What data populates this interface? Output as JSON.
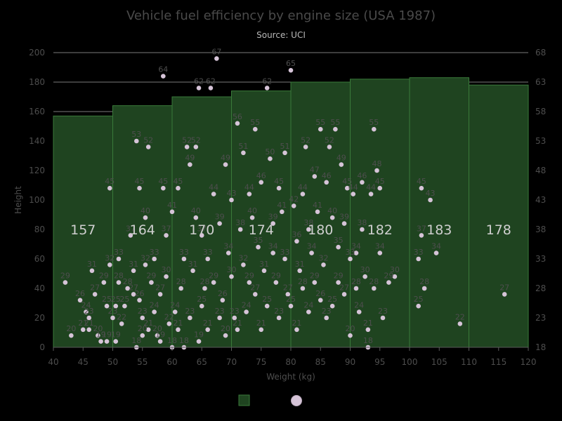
{
  "chart_data": {
    "type": "bar",
    "title": "Vehicle fuel efficiency by engine size (USA 1987)",
    "subtitle": "Source: UCI",
    "xlabel": "Weight (kg)",
    "ylabel": "Height",
    "xlim": [
      40,
      120
    ],
    "ylim": [
      0,
      200
    ],
    "y2lim": [
      18,
      68
    ],
    "x_ticks": [
      "40",
      "45",
      "50",
      "55",
      "60",
      "65",
      "70",
      "75",
      "80",
      "85",
      "90",
      "95",
      "100",
      "105",
      "110",
      "115",
      "120"
    ],
    "y_ticks": [
      "0",
      "20",
      "40",
      "60",
      "80",
      "100",
      "120",
      "140",
      "160",
      "180",
      "200"
    ],
    "y2_ticks": [
      "18",
      "23",
      "28",
      "33",
      "38",
      "43",
      "48",
      "53",
      "58",
      "63",
      "68"
    ],
    "colors": {
      "bar_fill": "#1f4420",
      "bar_stroke": "#3a7a3a",
      "point": "#d6c4d8",
      "grid": "#7a7a7a",
      "background": "#000000"
    },
    "legend": {
      "placement": "bottom-center"
    },
    "series": [
      {
        "type": "bar",
        "bins": [
          [
            40,
            50
          ],
          [
            50,
            60
          ],
          [
            60,
            70
          ],
          [
            70,
            80
          ],
          [
            80,
            90
          ],
          [
            90,
            100
          ],
          [
            100,
            110
          ],
          [
            110,
            120
          ]
        ],
        "values": [
          157,
          164,
          170,
          174,
          180,
          182,
          183,
          178
        ]
      },
      {
        "type": "scatter",
        "points": [
          [
            42,
            44,
            29
          ],
          [
            43,
            8,
            20
          ],
          [
            44.5,
            32,
            26
          ],
          [
            45,
            12,
            21
          ],
          [
            45.5,
            24,
            24
          ],
          [
            46,
            20,
            23
          ],
          [
            46,
            12,
            21
          ],
          [
            46.5,
            52,
            31
          ],
          [
            47,
            36,
            27
          ],
          [
            47.5,
            8,
            20
          ],
          [
            48,
            4,
            19
          ],
          [
            48.5,
            44,
            29
          ],
          [
            49,
            4,
            19
          ],
          [
            49,
            28,
            25
          ],
          [
            49.5,
            56,
            32
          ],
          [
            49.5,
            108,
            45
          ],
          [
            50,
            20,
            23
          ],
          [
            50.5,
            4,
            19
          ],
          [
            50.5,
            28,
            25
          ],
          [
            51,
            60,
            33
          ],
          [
            51,
            44,
            28
          ],
          [
            51.5,
            16,
            22
          ],
          [
            52,
            28,
            25
          ],
          [
            52.5,
            40,
            28
          ],
          [
            53,
            76,
            37
          ],
          [
            53.5,
            36,
            27
          ],
          [
            53.5,
            52,
            31
          ],
          [
            54,
            0,
            18
          ],
          [
            54,
            140,
            53
          ],
          [
            54.5,
            108,
            45
          ],
          [
            54.5,
            32,
            26
          ],
          [
            55,
            20,
            23
          ],
          [
            55,
            8,
            20
          ],
          [
            55.5,
            56,
            32
          ],
          [
            55.5,
            88,
            40
          ],
          [
            56,
            136,
            52
          ],
          [
            56,
            12,
            21
          ],
          [
            56.5,
            44,
            29
          ],
          [
            57,
            24,
            24
          ],
          [
            57,
            60,
            33
          ],
          [
            57.5,
            8,
            20
          ],
          [
            58,
            36,
            27
          ],
          [
            58,
            4,
            19
          ],
          [
            58.5,
            184,
            64
          ],
          [
            58.5,
            108,
            45
          ],
          [
            59,
            76,
            37
          ],
          [
            59,
            48,
            30
          ],
          [
            59.5,
            16,
            22
          ],
          [
            60,
            92,
            41
          ],
          [
            60,
            0,
            18
          ],
          [
            60.5,
            24,
            24
          ],
          [
            61,
            12,
            21
          ],
          [
            61,
            108,
            45
          ],
          [
            61.5,
            40,
            28
          ],
          [
            62,
            0,
            18
          ],
          [
            62,
            60,
            33
          ],
          [
            62.5,
            136,
            52
          ],
          [
            63,
            20,
            23
          ],
          [
            63,
            124,
            49
          ],
          [
            63.5,
            52,
            31
          ],
          [
            64,
            88,
            40
          ],
          [
            64,
            136,
            52
          ],
          [
            64.5,
            176,
            62
          ],
          [
            64.5,
            4,
            19
          ],
          [
            65,
            76,
            37
          ],
          [
            65,
            28,
            25
          ],
          [
            65.5,
            40,
            28
          ],
          [
            66,
            12,
            21
          ],
          [
            66,
            60,
            33
          ],
          [
            66.5,
            176,
            62
          ],
          [
            67,
            104,
            44
          ],
          [
            67,
            44,
            29
          ],
          [
            67.5,
            196,
            67
          ],
          [
            68,
            20,
            23
          ],
          [
            68,
            84,
            39
          ],
          [
            68.5,
            32,
            26
          ],
          [
            69,
            124,
            49
          ],
          [
            69,
            8,
            20
          ],
          [
            69.5,
            64,
            34
          ],
          [
            70,
            100,
            43
          ],
          [
            70,
            48,
            30
          ],
          [
            70.5,
            20,
            23
          ],
          [
            71,
            152,
            56
          ],
          [
            71,
            12,
            21
          ],
          [
            71.5,
            80,
            38
          ],
          [
            72,
            56,
            32
          ],
          [
            72,
            132,
            51
          ],
          [
            72.5,
            24,
            24
          ],
          [
            73,
            104,
            44
          ],
          [
            73,
            44,
            29
          ],
          [
            73.5,
            88,
            40
          ],
          [
            74,
            148,
            55
          ],
          [
            74,
            36,
            27
          ],
          [
            74.5,
            68,
            35
          ],
          [
            75,
            12,
            21
          ],
          [
            75,
            112,
            46
          ],
          [
            75.5,
            52,
            31
          ],
          [
            76,
            176,
            62
          ],
          [
            76,
            28,
            25
          ],
          [
            76.5,
            128,
            50
          ],
          [
            77,
            84,
            39
          ],
          [
            77,
            64,
            34
          ],
          [
            77.5,
            44,
            29
          ],
          [
            78,
            108,
            45
          ],
          [
            78,
            20,
            23
          ],
          [
            78.5,
            92,
            41
          ],
          [
            79,
            60,
            33
          ],
          [
            79,
            132,
            51
          ],
          [
            79.5,
            36,
            27
          ],
          [
            80,
            188,
            65
          ],
          [
            80,
            28,
            25
          ],
          [
            80.5,
            96,
            42
          ],
          [
            81,
            12,
            21
          ],
          [
            81,
            72,
            36
          ],
          [
            81.5,
            52,
            31
          ],
          [
            82,
            104,
            44
          ],
          [
            82,
            40,
            28
          ],
          [
            82.5,
            136,
            52
          ],
          [
            83,
            80,
            38
          ],
          [
            83,
            24,
            24
          ],
          [
            83.5,
            64,
            34
          ],
          [
            84,
            116,
            47
          ],
          [
            84,
            44,
            29
          ],
          [
            84.5,
            92,
            41
          ],
          [
            85,
            148,
            55
          ],
          [
            85,
            32,
            26
          ],
          [
            85.5,
            56,
            32
          ],
          [
            86,
            112,
            46
          ],
          [
            86,
            20,
            23
          ],
          [
            86.5,
            136,
            52
          ],
          [
            87,
            88,
            40
          ],
          [
            87,
            28,
            25
          ],
          [
            87.5,
            148,
            55
          ],
          [
            88,
            68,
            35
          ],
          [
            88,
            44,
            29
          ],
          [
            88.5,
            124,
            49
          ],
          [
            89,
            36,
            27
          ],
          [
            89,
            84,
            39
          ],
          [
            89.5,
            108,
            45
          ],
          [
            90,
            8,
            20
          ],
          [
            90,
            60,
            33
          ],
          [
            90.5,
            104,
            44
          ],
          [
            91,
            40,
            28
          ],
          [
            91,
            64,
            34
          ],
          [
            91.5,
            24,
            24
          ],
          [
            92,
            80,
            38
          ],
          [
            92,
            112,
            46
          ],
          [
            92.5,
            48,
            30
          ],
          [
            93,
            0,
            18
          ],
          [
            93,
            12,
            21
          ],
          [
            93.5,
            104,
            44
          ],
          [
            94,
            148,
            55
          ],
          [
            94,
            40,
            28
          ],
          [
            94.5,
            120,
            48
          ],
          [
            95,
            64,
            34
          ],
          [
            95,
            108,
            45
          ],
          [
            95.5,
            20,
            23
          ],
          [
            96.5,
            44,
            29
          ],
          [
            97.5,
            48,
            30
          ],
          [
            101.5,
            28,
            25
          ],
          [
            101.5,
            60,
            33
          ],
          [
            102,
            108,
            45
          ],
          [
            102.5,
            40,
            28
          ],
          [
            102,
            76,
            37
          ],
          [
            103.5,
            100,
            43
          ],
          [
            104.5,
            64,
            34
          ],
          [
            108.5,
            16,
            22
          ],
          [
            116,
            36,
            27
          ]
        ]
      }
    ]
  }
}
